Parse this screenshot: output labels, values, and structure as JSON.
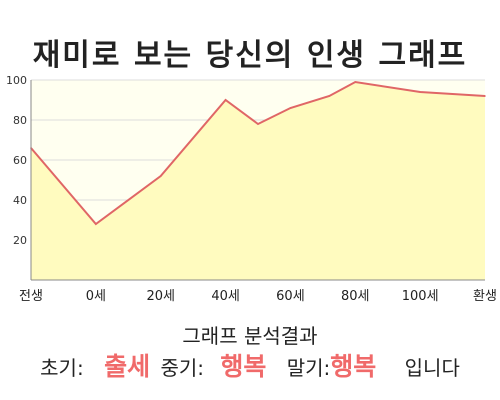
{
  "chart_data": {
    "type": "area",
    "title": "재미로 보는 당신의 인생 그래프",
    "categories": [
      "전생",
      "0세",
      "20세",
      "40세",
      "60세",
      "80세",
      "100세",
      "환생"
    ],
    "x": [
      0,
      1,
      2,
      3,
      3.5,
      4,
      4.6,
      5,
      6,
      7
    ],
    "values": [
      66,
      28,
      52,
      90,
      78,
      86,
      92,
      99,
      94,
      92
    ],
    "ylim": [
      0,
      100
    ],
    "yticks": [
      20,
      40,
      60,
      80,
      100
    ],
    "grid": true,
    "colors": {
      "line": "#e06666",
      "fill": "#fffbbf",
      "plot_bg": "#fffff0",
      "grid": "#dddddd"
    }
  },
  "analysis": {
    "title": "그래프 분석결과",
    "early_label": "초기:",
    "early_value": "출세",
    "mid_label": "중기:",
    "mid_value": "행복",
    "late_label": "말기:",
    "late_value": "행복",
    "suffix": "입니다"
  }
}
